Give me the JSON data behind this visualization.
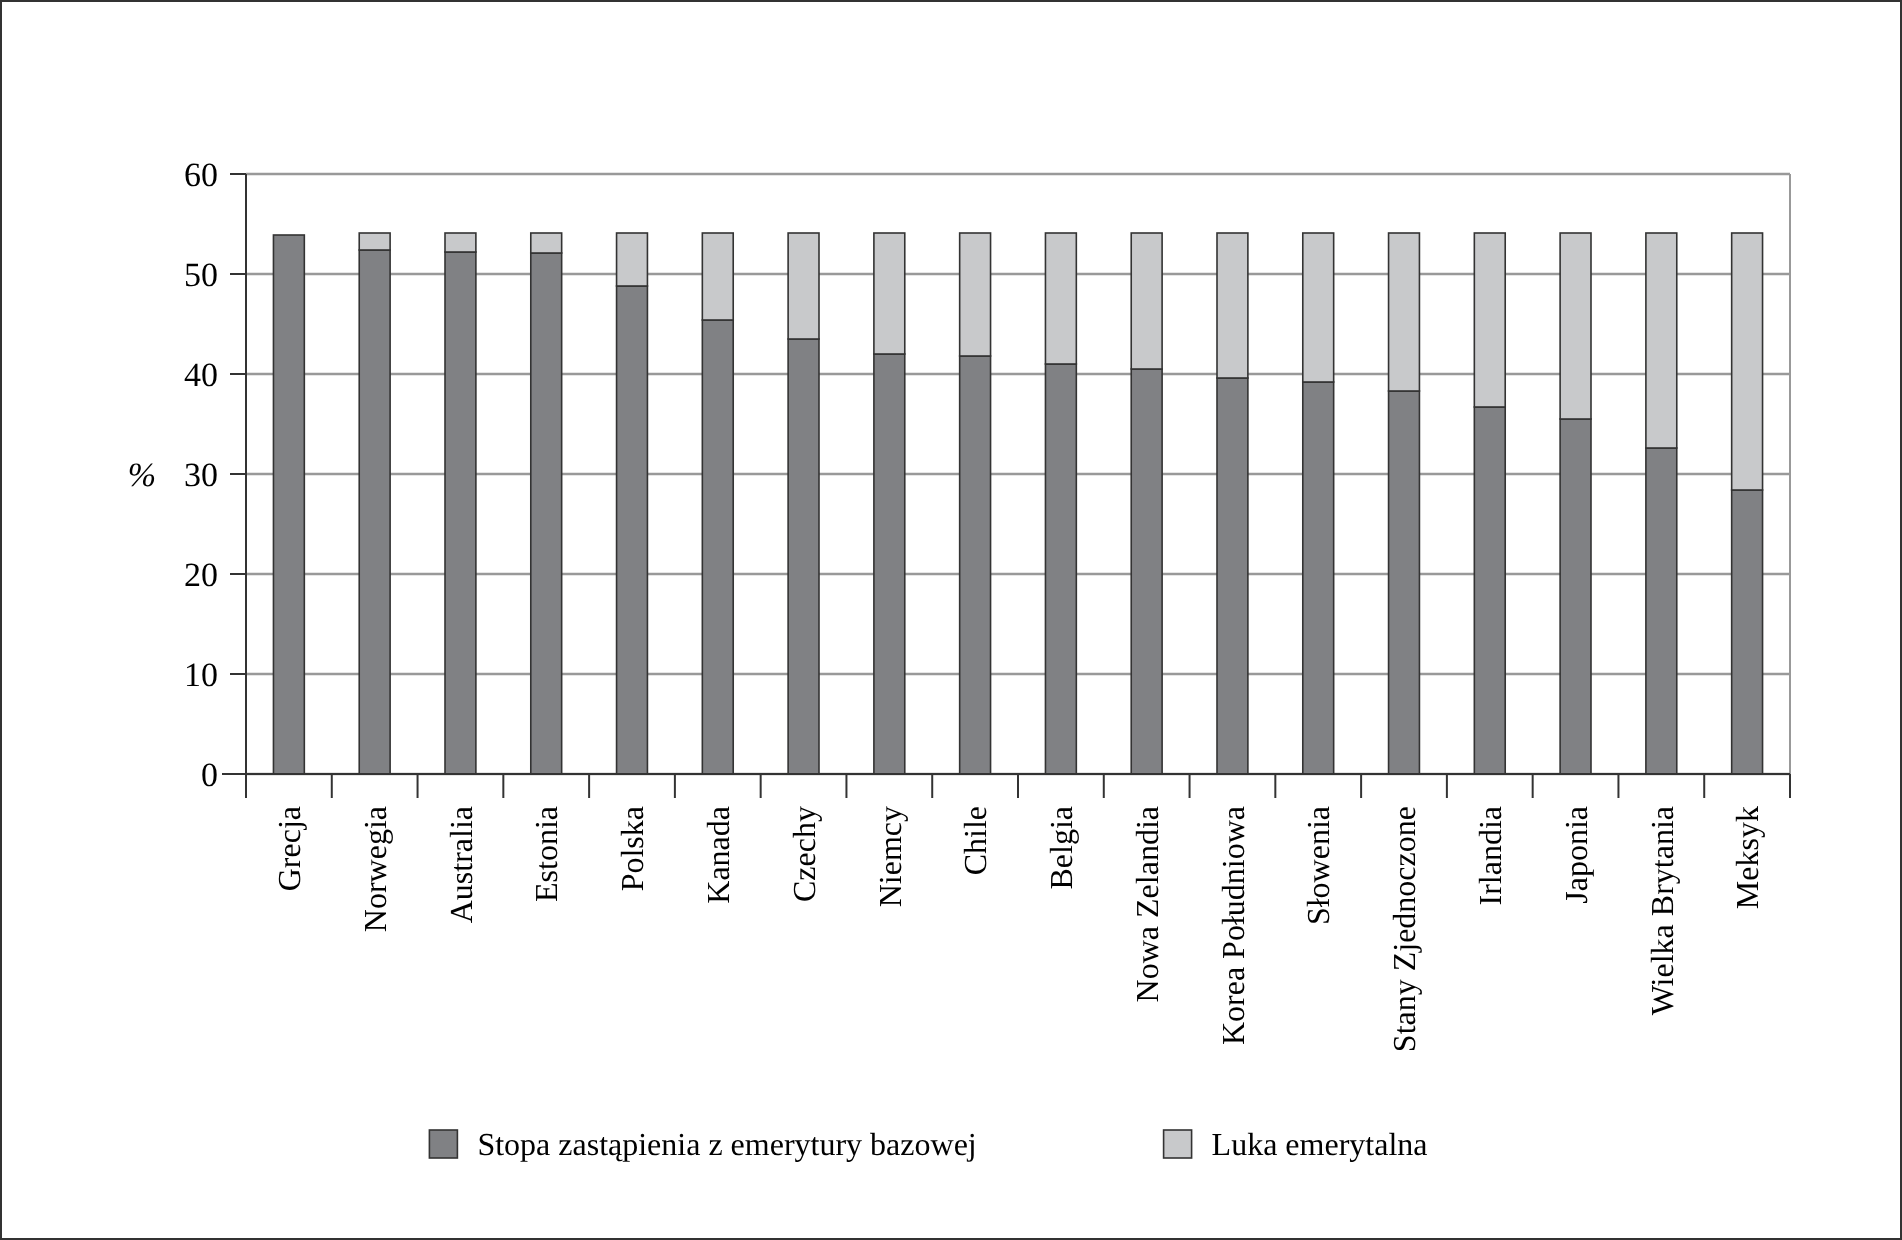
{
  "chart_data": {
    "type": "bar",
    "stacked": true,
    "ylabel": "%",
    "categories": [
      "Grecja",
      "Norwegia",
      "Australia",
      "Estonia",
      "Polska",
      "Kanada",
      "Czechy",
      "Niemcy",
      "Chile",
      "Belgia",
      "Nowa Zelandia",
      "Korea Południowa",
      "Słowenia",
      "Stany Zjednoczone",
      "Irlandia",
      "Japonia",
      "Wielka Brytania",
      "Meksyk"
    ],
    "series": [
      {
        "name": "Stopa zastąpienia z emerytury bazowej",
        "color": "#808184",
        "values": [
          53.9,
          52.4,
          52.2,
          52.1,
          48.8,
          45.4,
          43.5,
          42.0,
          41.8,
          41.0,
          40.5,
          39.6,
          39.2,
          38.3,
          36.7,
          35.5,
          32.6,
          28.4
        ]
      },
      {
        "name": "Luka emerytalna",
        "color": "#c8c9cb",
        "values": [
          null,
          1.7,
          1.9,
          2.0,
          5.3,
          8.7,
          10.6,
          12.1,
          12.3,
          13.1,
          13.6,
          14.5,
          14.9,
          15.8,
          17.4,
          18.6,
          21.5,
          25.7
        ]
      }
    ],
    "ylim": [
      0,
      60
    ],
    "yticks": [
      0,
      10,
      20,
      30,
      40,
      50,
      60
    ],
    "grid": "y",
    "legend": "bottom"
  }
}
